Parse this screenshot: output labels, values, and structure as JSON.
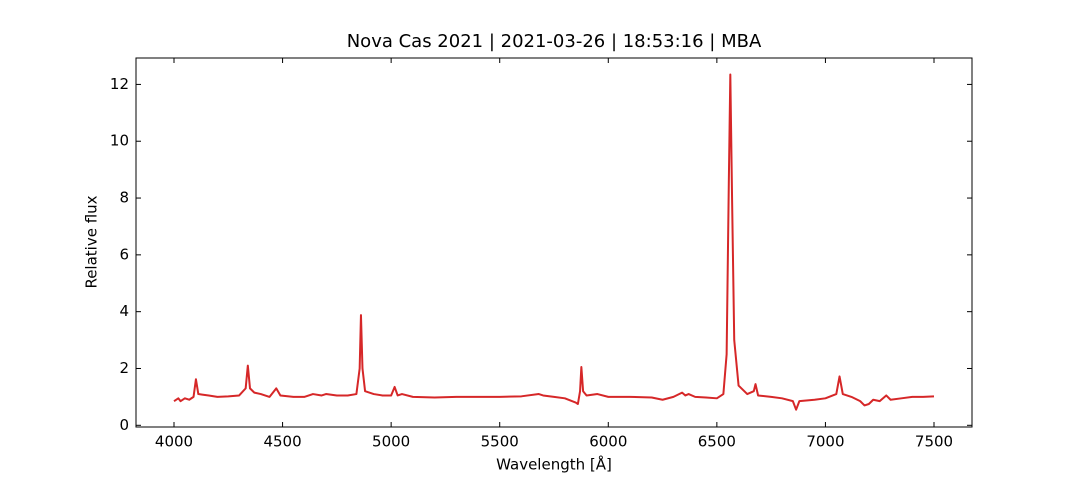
{
  "chart_data": {
    "type": "line",
    "title": "Nova Cas 2021 | 2021-03-26 | 18:53:16 | MBA",
    "xlabel": "Wavelength [Å]",
    "ylabel": "Relative flux",
    "xlim": [
      3825,
      7675
    ],
    "ylim": [
      -0.06,
      12.93
    ],
    "xticks": [
      4000,
      4500,
      5000,
      5500,
      6000,
      6500,
      7000,
      7500
    ],
    "yticks": [
      0,
      2,
      4,
      6,
      8,
      10,
      12
    ],
    "tick_direction": "in",
    "series": [
      {
        "color": "#d62728",
        "x": [
          4000,
          4020,
          4030,
          4050,
          4070,
          4090,
          4101,
          4112,
          4130,
          4160,
          4200,
          4250,
          4300,
          4330,
          4340,
          4350,
          4370,
          4400,
          4440,
          4471,
          4490,
          4550,
          4600,
          4640,
          4680,
          4700,
          4750,
          4800,
          4840,
          4855,
          4861,
          4868,
          4880,
          4920,
          4960,
          5000,
          5016,
          5030,
          5050,
          5100,
          5200,
          5300,
          5400,
          5500,
          5600,
          5680,
          5700,
          5750,
          5800,
          5850,
          5860,
          5870,
          5876,
          5884,
          5900,
          5950,
          6000,
          6100,
          6200,
          6250,
          6300,
          6340,
          6355,
          6370,
          6400,
          6450,
          6500,
          6530,
          6545,
          6555,
          6562,
          6570,
          6580,
          6600,
          6640,
          6670,
          6678,
          6690,
          6750,
          6800,
          6850,
          6865,
          6880,
          6950,
          7000,
          7050,
          7065,
          7080,
          7120,
          7160,
          7180,
          7200,
          7220,
          7250,
          7280,
          7300,
          7350,
          7400,
          7450,
          7500
        ],
        "values": [
          0.85,
          0.95,
          0.85,
          0.95,
          0.9,
          1.0,
          1.62,
          1.1,
          1.08,
          1.05,
          1.0,
          1.02,
          1.05,
          1.3,
          2.1,
          1.3,
          1.15,
          1.1,
          1.0,
          1.3,
          1.05,
          1.0,
          1.0,
          1.1,
          1.05,
          1.1,
          1.05,
          1.05,
          1.1,
          2.0,
          3.88,
          2.0,
          1.2,
          1.1,
          1.05,
          1.05,
          1.35,
          1.05,
          1.1,
          1.0,
          0.98,
          1.0,
          1.0,
          1.0,
          1.02,
          1.1,
          1.05,
          1.0,
          0.95,
          0.8,
          0.75,
          1.2,
          2.05,
          1.2,
          1.05,
          1.1,
          1.0,
          1.0,
          0.98,
          0.9,
          1.0,
          1.15,
          1.05,
          1.1,
          1.0,
          0.98,
          0.95,
          1.1,
          2.5,
          8.5,
          12.35,
          8.0,
          3.0,
          1.4,
          1.1,
          1.2,
          1.45,
          1.05,
          1.0,
          0.95,
          0.85,
          0.55,
          0.85,
          0.9,
          0.95,
          1.1,
          1.72,
          1.1,
          1.0,
          0.85,
          0.7,
          0.75,
          0.9,
          0.85,
          1.05,
          0.9,
          0.95,
          1.0,
          1.0,
          1.02
        ]
      }
    ]
  }
}
